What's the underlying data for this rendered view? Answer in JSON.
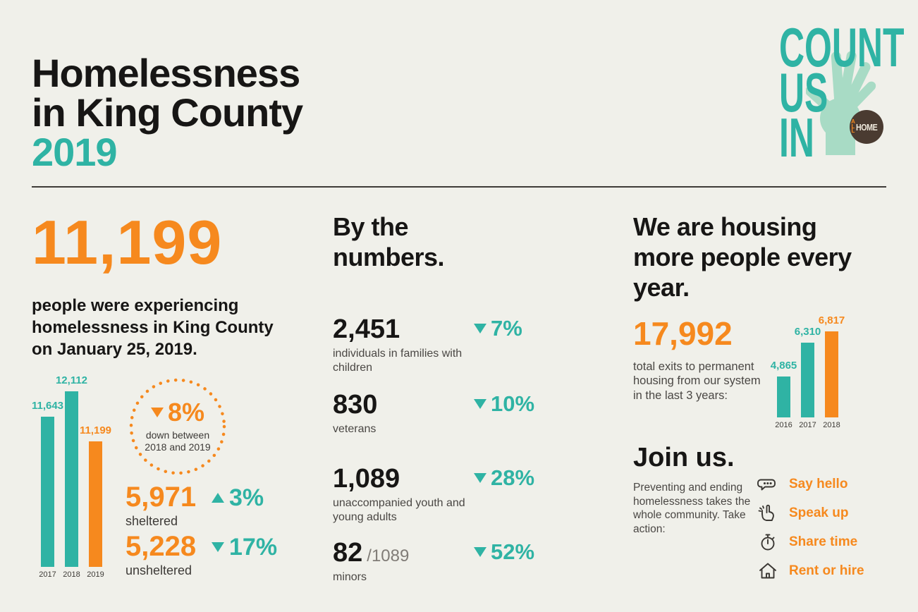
{
  "header": {
    "title_line1": "Homelessness",
    "title_line2": "in King County",
    "title_year": "2019"
  },
  "logo": {
    "line1": "COUNT",
    "line2": "US",
    "line3": "IN",
    "badge_all": "A\nL\nL",
    "badge_home": "HOME"
  },
  "left": {
    "big_number": "11,199",
    "subtitle": "people were experiencing homelessness in King County on January 25, 2019.",
    "circle": {
      "pct": "8%",
      "caption": "down between 2018 and 2019"
    },
    "sheltered": {
      "value": "5,971",
      "label": "sheltered",
      "pct": "3%",
      "direction": "up"
    },
    "unsheltered": {
      "value": "5,228",
      "label": "unsheltered",
      "pct": "17%",
      "direction": "down"
    }
  },
  "middle": {
    "heading": "By the numbers.",
    "stats": [
      {
        "value": "2,451",
        "suffix": "",
        "label": "individuals in families with children",
        "pct": "7%",
        "direction": "down"
      },
      {
        "value": "830",
        "suffix": "",
        "label": "veterans",
        "pct": "10%",
        "direction": "down"
      },
      {
        "value": "1,089",
        "suffix": "",
        "label": "unaccompanied youth and young adults",
        "pct": "28%",
        "direction": "down"
      },
      {
        "value": "82",
        "suffix": "/1089",
        "label": "minors",
        "pct": "52%",
        "direction": "down"
      }
    ]
  },
  "right": {
    "heading": "We are housing more people every year.",
    "big_number": "17,992",
    "caption": "total exits to permanent housing from our system in the last 3 years:",
    "join": {
      "heading": "Join us.",
      "text": "Preventing and ending homelessness takes the whole community. Take action:",
      "actions": [
        {
          "icon": "chat-bubble-icon",
          "label": "Say hello"
        },
        {
          "icon": "raised-hand-icon",
          "label": "Speak up"
        },
        {
          "icon": "stopwatch-icon",
          "label": "Share time"
        },
        {
          "icon": "house-icon",
          "label": "Rent or hire"
        }
      ]
    }
  },
  "chart_data": [
    {
      "type": "bar",
      "name": "people-experiencing-homelessness-by-year",
      "categories": [
        "2017",
        "2018",
        "2019"
      ],
      "values": [
        11643,
        12112,
        11199
      ],
      "value_labels": [
        "11,643",
        "12,112",
        "11,199"
      ],
      "colors": [
        "#2fb3a4",
        "#2fb3a4",
        "#f6891e"
      ],
      "ylim": [
        8900,
        12150
      ],
      "grid": false,
      "legend": "none"
    },
    {
      "type": "bar",
      "name": "exits-to-permanent-housing-by-year",
      "categories": [
        "2016",
        "2017",
        "2018"
      ],
      "values": [
        4865,
        6310,
        6817
      ],
      "value_labels": [
        "4,865",
        "6,310",
        "6,817"
      ],
      "colors": [
        "#2fb3a4",
        "#2fb3a4",
        "#f6891e"
      ],
      "ylim": [
        3100,
        6900
      ],
      "grid": false,
      "legend": "none"
    }
  ],
  "colors": {
    "background": "#f0f0ea",
    "teal": "#2fb3a4",
    "orange": "#f6891e",
    "ink": "#171615",
    "gray": "#4a4744",
    "mint_hand": "#a8dbc5",
    "badge_brown": "#4a3b31"
  }
}
